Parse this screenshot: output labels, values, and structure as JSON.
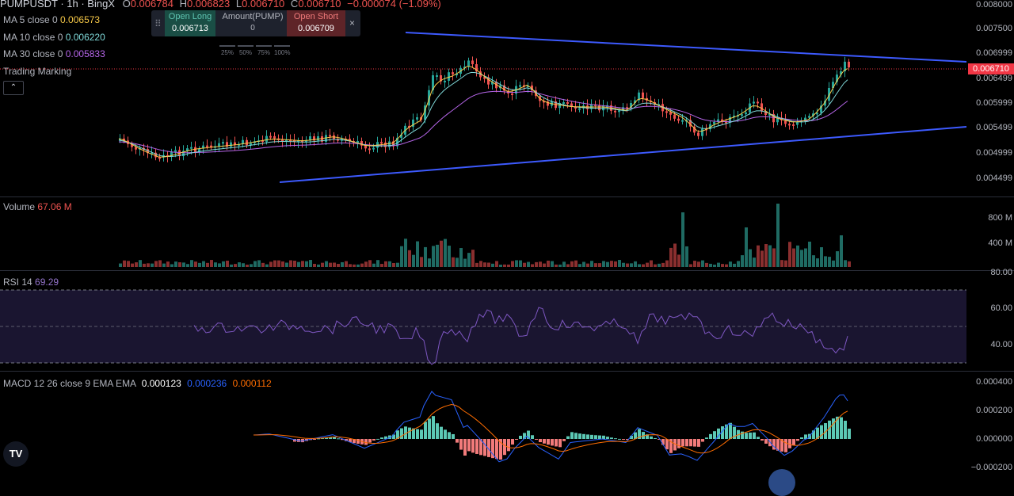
{
  "header": {
    "symbol": "PUMPUSDT · 1h · BingX",
    "o_label": "O",
    "o_val": "0.006784",
    "h_label": "H",
    "h_val": "0.006823",
    "l_label": "L",
    "l_val": "0.006710",
    "c_label": "C",
    "c_val": "0.006710",
    "change": "−0.000074 (−1.09%)"
  },
  "ma": [
    {
      "label": "MA 5 close 0",
      "value": "0.006573",
      "color": "#f7c948"
    },
    {
      "label": "MA 10 close 0",
      "value": "0.006220",
      "color": "#7fd8d8"
    },
    {
      "label": "MA 30 close 0",
      "value": "0.005833",
      "color": "#b565e8"
    }
  ],
  "trading_marking": "Trading Marking",
  "order_panel": {
    "open_long_label": "Open Long",
    "open_long_value": "0.006713",
    "amount_label": "Amount(PUMP)",
    "amount_value": "0",
    "open_short_label": "Open Short",
    "open_short_value": "0.006709",
    "close": "×",
    "percents": [
      "25%",
      "50%",
      "75%",
      "100%"
    ]
  },
  "price_axis": [
    "0.008000",
    "0.007500",
    "0.006999",
    "0.006499",
    "0.005999",
    "0.005499",
    "0.004999",
    "0.004499"
  ],
  "last_price": "0.006710",
  "volume": {
    "label": "Volume",
    "value": "67.06 M",
    "axis": [
      "800 M",
      "400 M"
    ]
  },
  "rsi": {
    "label": "RSI 14",
    "value": "69.29",
    "axis": [
      "80.00",
      "60.00",
      "40.00"
    ]
  },
  "macd": {
    "label": "MACD 12 26 close 9 EMA EMA",
    "hist": "0.000123",
    "macd": "0.000236",
    "signal": "0.000112",
    "axis": [
      "0.000400",
      "0.000200",
      "0.000000",
      "−0.000200"
    ]
  },
  "colors": {
    "up": "#26a69a",
    "down": "#ef5350",
    "trend": "#3d5afe",
    "ma5": "#f7c948",
    "ma10": "#7fd8d8",
    "ma30": "#b565e8",
    "rsi": "#7e57c2",
    "macd": "#2962ff",
    "signal": "#ff6d00"
  }
}
